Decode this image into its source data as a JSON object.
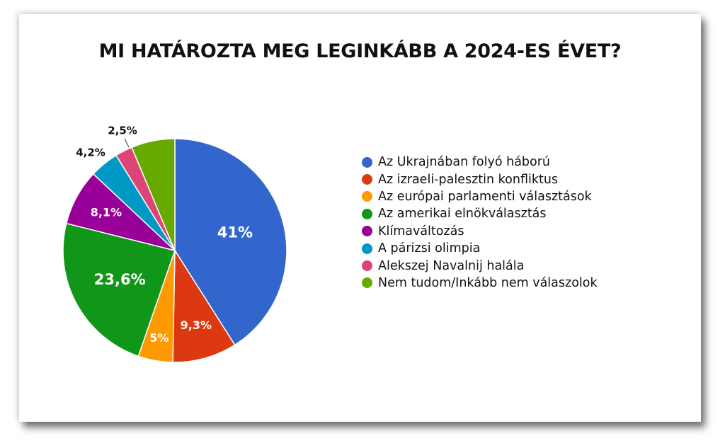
{
  "title": "MI HATÁROZTA MEG LEGINKÁBB A 2024-ES ÉVET?",
  "chart_data": {
    "type": "pie",
    "title": "MI HATÁROZTA MEG LEGINKÁBB A 2024-ES ÉVET?",
    "legend_position": "right",
    "start_angle_deg": 0,
    "direction": "clockwise",
    "slices": [
      {
        "label": "Az Ukrajnában folyó háború",
        "value": 41,
        "display": "41%",
        "color": "#3366cc",
        "label_inside": true
      },
      {
        "label": "Az izraeli-palesztin konfliktus",
        "value": 9.3,
        "display": "9,3%",
        "color": "#dc3912",
        "label_inside": true
      },
      {
        "label": "Az európai parlamenti választások",
        "value": 5,
        "display": "5%",
        "color": "#ff9900",
        "label_inside": true
      },
      {
        "label": "Az amerikai elnökválasztás",
        "value": 23.6,
        "display": "23,6%",
        "color": "#109618",
        "label_inside": true
      },
      {
        "label": "Klímaváltozás",
        "value": 8.1,
        "display": "8,1%",
        "color": "#990099",
        "label_inside": true
      },
      {
        "label": "A párizsi olimpia",
        "value": 4.2,
        "display": "4,2%",
        "color": "#0099c6",
        "label_inside": false
      },
      {
        "label": "Alekszej Navalnij halála",
        "value": 2.5,
        "display": "2,5%",
        "color": "#dd4477",
        "label_inside": false
      },
      {
        "label": "Nem tudom/Inkább nem válaszolok",
        "value": 6.3,
        "display": "",
        "color": "#66aa00",
        "label_inside": false
      }
    ]
  }
}
